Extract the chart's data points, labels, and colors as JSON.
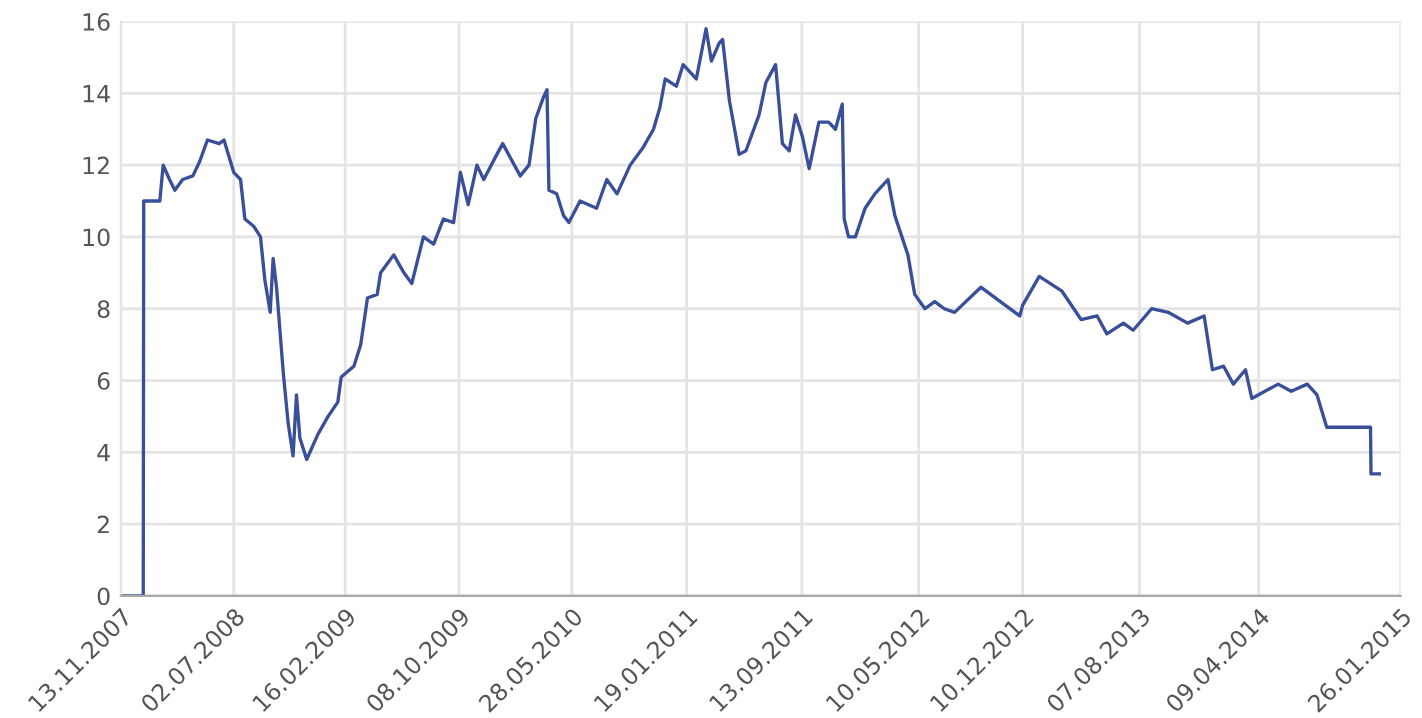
{
  "chart_data": {
    "type": "line",
    "x": [
      "2007-11-13",
      "2007-12-29",
      "2007-12-30",
      "2008-02-01",
      "2008-02-08",
      "2008-02-21",
      "2008-03-03",
      "2008-03-19",
      "2008-04-09",
      "2008-04-23",
      "2008-05-09",
      "2008-06-02",
      "2008-06-12",
      "2008-07-02",
      "2008-07-16",
      "2008-07-25",
      "2008-08-12",
      "2008-08-26",
      "2008-09-04",
      "2008-09-15",
      "2008-09-21",
      "2008-09-28",
      "2008-10-12",
      "2008-10-22",
      "2008-11-01",
      "2008-11-08",
      "2008-11-15",
      "2008-11-29",
      "2008-12-22",
      "2009-01-12",
      "2009-02-01",
      "2009-02-08",
      "2009-03-06",
      "2009-03-20",
      "2009-04-03",
      "2009-04-23",
      "2009-04-30",
      "2009-05-27",
      "2009-06-17",
      "2009-07-03",
      "2009-07-27",
      "2009-08-17",
      "2009-09-06",
      "2009-09-27",
      "2009-10-11",
      "2009-10-27",
      "2009-11-14",
      "2009-11-28",
      "2009-12-25",
      "2010-01-06",
      "2010-01-22",
      "2010-02-11",
      "2010-03-01",
      "2010-03-15",
      "2010-03-31",
      "2010-04-07",
      "2010-04-11",
      "2010-04-27",
      "2010-05-11",
      "2010-05-22",
      "2010-06-14",
      "2010-07-18",
      "2010-08-08",
      "2010-08-29",
      "2010-09-25",
      "2010-10-22",
      "2010-11-12",
      "2010-11-25",
      "2010-12-06",
      "2010-12-29",
      "2011-01-12",
      "2011-02-08",
      "2011-02-28",
      "2011-03-11",
      "2011-03-27",
      "2011-04-03",
      "2011-04-17",
      "2011-05-07",
      "2011-05-21",
      "2011-06-17",
      "2011-07-01",
      "2011-07-21",
      "2011-08-04",
      "2011-08-18",
      "2011-08-31",
      "2011-09-14",
      "2011-09-28",
      "2011-10-18",
      "2011-11-07",
      "2011-11-21",
      "2011-12-05",
      "2011-12-09",
      "2011-12-18",
      "2012-01-01",
      "2012-01-21",
      "2012-02-10",
      "2012-03-08",
      "2012-03-22",
      "2012-04-18",
      "2012-05-02",
      "2012-05-23",
      "2012-06-12",
      "2012-07-02",
      "2012-07-23",
      "2012-09-15",
      "2012-10-25",
      "2012-12-04",
      "2012-12-10",
      "2013-01-13",
      "2013-02-28",
      "2013-04-09",
      "2013-05-12",
      "2013-06-01",
      "2013-07-05",
      "2013-07-25",
      "2013-09-01",
      "2013-10-05",
      "2013-11-14",
      "2013-12-18",
      "2014-01-04",
      "2014-01-27",
      "2014-02-16",
      "2014-03-13",
      "2014-03-26",
      "2014-04-22",
      "2014-05-19",
      "2014-06-15",
      "2014-07-18",
      "2014-08-07",
      "2014-08-27",
      "2014-11-25",
      "2014-11-26",
      "2014-12-13"
    ],
    "series": [
      {
        "color": "#3a4f9a",
        "values": [
          0,
          0,
          11.0,
          11.0,
          12.0,
          11.6,
          11.3,
          11.6,
          11.7,
          12.1,
          12.7,
          12.6,
          12.7,
          11.8,
          11.6,
          10.5,
          10.3,
          10.0,
          8.8,
          7.9,
          9.4,
          8.6,
          6.2,
          4.8,
          3.9,
          5.6,
          4.4,
          3.8,
          4.5,
          5.0,
          5.4,
          6.1,
          6.4,
          7.0,
          8.3,
          8.4,
          9.0,
          9.5,
          9.0,
          8.7,
          10.0,
          9.8,
          10.5,
          10.4,
          11.8,
          10.9,
          12.0,
          11.6,
          12.3,
          12.6,
          12.2,
          11.7,
          12.0,
          13.3,
          13.9,
          14.1,
          11.3,
          11.2,
          10.6,
          10.4,
          11.0,
          10.8,
          11.6,
          11.2,
          12.0,
          12.5,
          13.0,
          13.6,
          14.4,
          14.2,
          14.8,
          14.4,
          15.8,
          14.9,
          15.4,
          15.5,
          13.8,
          12.3,
          12.4,
          13.4,
          14.3,
          14.8,
          12.6,
          12.4,
          13.4,
          12.8,
          11.9,
          13.2,
          13.2,
          13.0,
          13.7,
          10.5,
          10.0,
          10.0,
          10.8,
          11.2,
          11.6,
          10.6,
          9.5,
          8.4,
          8.0,
          8.2,
          8.0,
          7.9,
          8.6,
          8.2,
          7.8,
          8.1,
          8.9,
          8.5,
          7.7,
          7.8,
          7.3,
          7.6,
          7.4,
          8.0,
          7.9,
          7.6,
          7.8,
          6.3,
          6.4,
          5.9,
          6.3,
          5.5,
          5.7,
          5.9,
          5.7,
          5.9,
          5.6,
          4.7,
          4.7,
          3.4,
          3.4
        ]
      }
    ],
    "xlim": [
      "2007-11-13",
      "2015-01-26"
    ],
    "xticks": [
      {
        "value": "2007-11-13",
        "label": "13.11.2007"
      },
      {
        "value": "2008-07-02",
        "label": "02.07.2008"
      },
      {
        "value": "2009-02-16",
        "label": "16.02.2009"
      },
      {
        "value": "2009-10-08",
        "label": "08.10.2009"
      },
      {
        "value": "2010-05-28",
        "label": "28.05.2010"
      },
      {
        "value": "2011-01-19",
        "label": "19.01.2011"
      },
      {
        "value": "2011-09-13",
        "label": "13.09.2011"
      },
      {
        "value": "2012-05-10",
        "label": "10.05.2012"
      },
      {
        "value": "2012-12-10",
        "label": "10.12.2012"
      },
      {
        "value": "2013-08-07",
        "label": "07.08.2013"
      },
      {
        "value": "2014-04-09",
        "label": "09.04.2014"
      },
      {
        "value": "2015-01-26",
        "label": "26.01.2015"
      }
    ],
    "ylim": [
      0,
      16
    ],
    "yticks": [
      0,
      2,
      4,
      6,
      8,
      10,
      12,
      14,
      16
    ],
    "grid": true,
    "marker": "none",
    "line_style": "solid"
  }
}
